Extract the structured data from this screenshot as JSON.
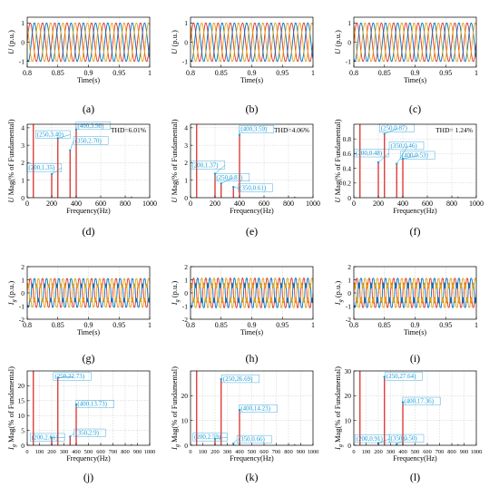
{
  "figure": {
    "colors": {
      "phase": [
        "#d9362b",
        "#0072bd",
        "#e8a317"
      ],
      "harmonic": "#d9302a",
      "annotation": "#1a9cd8",
      "grid": "#c8c8c8"
    }
  },
  "chart_data": [
    {
      "id": "a",
      "label": "(a)",
      "type": "line",
      "kind": "wave",
      "xlabel": "Time(s)",
      "ylabel": "U (p.u.)",
      "xlim": [
        0.8,
        1.0
      ],
      "ylim": [
        -1.3,
        1.3
      ],
      "xticks": [
        "0.8",
        "0.85",
        "0.9",
        "0.95",
        "1"
      ],
      "yticks": [
        "-1",
        "0",
        "1"
      ],
      "series": [
        {
          "values": {
            "amplitude": 1.0,
            "frequency_hz": 50,
            "phase_deg": 0
          }
        },
        {
          "values": {
            "amplitude": 1.0,
            "frequency_hz": 50,
            "phase_deg": -120
          }
        },
        {
          "values": {
            "amplitude": 1.0,
            "frequency_hz": 50,
            "phase_deg": 120
          }
        }
      ],
      "grid": true
    },
    {
      "id": "b",
      "label": "(b)",
      "type": "line",
      "kind": "wave",
      "xlabel": "Time(s)",
      "ylabel": "U (p.u.)",
      "xlim": [
        0.8,
        1.0
      ],
      "ylim": [
        -1.3,
        1.3
      ],
      "xticks": [
        "0.8",
        "0.85",
        "0.9",
        "0.95",
        "1"
      ],
      "yticks": [
        "-1",
        "0",
        "1"
      ],
      "series": [
        {
          "values": {
            "amplitude": 1.0,
            "frequency_hz": 50,
            "phase_deg": 0
          }
        },
        {
          "values": {
            "amplitude": 1.0,
            "frequency_hz": 50,
            "phase_deg": -120
          }
        },
        {
          "values": {
            "amplitude": 1.0,
            "frequency_hz": 50,
            "phase_deg": 120
          }
        }
      ],
      "grid": true
    },
    {
      "id": "c",
      "label": "(c)",
      "type": "line",
      "kind": "wave",
      "xlabel": "Time(s)",
      "ylabel": "U (p.u.)",
      "xlim": [
        0.8,
        1.0
      ],
      "ylim": [
        -1.3,
        1.3
      ],
      "xticks": [
        "0.8",
        "0.85",
        "0.9",
        "0.95",
        "1"
      ],
      "yticks": [
        "-1",
        "0",
        "1"
      ],
      "series": [
        {
          "values": {
            "amplitude": 1.0,
            "frequency_hz": 50,
            "phase_deg": 0
          }
        },
        {
          "values": {
            "amplitude": 1.0,
            "frequency_hz": 50,
            "phase_deg": -120
          }
        },
        {
          "values": {
            "amplitude": 1.0,
            "frequency_hz": 50,
            "phase_deg": 120
          }
        }
      ],
      "grid": true
    },
    {
      "id": "d",
      "label": "(d)",
      "type": "bar",
      "kind": "spectrum",
      "xlabel": "Frequency(Hz)",
      "ylabel": "U Mag(% of Fundamental)",
      "xlim": [
        0,
        1000
      ],
      "ylim": [
        0,
        4.2
      ],
      "xticks": [
        "0",
        "200",
        "400",
        "600",
        "800",
        "1000"
      ],
      "yticks": [
        "0",
        "1",
        "2",
        "3",
        "4"
      ],
      "thd": "THD=6.01%",
      "x": [
        50,
        200,
        250,
        350,
        400
      ],
      "values": [
        4.2,
        1.35,
        3.4,
        2.7,
        3.9
      ],
      "annotations": [
        {
          "text": "(200,1.35)",
          "x": 200,
          "y": 1.35,
          "tx": 10,
          "ty": 1.6
        },
        {
          "text": "(250,3.40)",
          "x": 250,
          "y": 3.4,
          "tx": 80,
          "ty": 3.5
        },
        {
          "text": "(400,3.90)",
          "x": 400,
          "y": 3.9,
          "tx": 410,
          "ty": 4.0
        },
        {
          "text": "(350,2.70)",
          "x": 350,
          "y": 2.7,
          "tx": 390,
          "ty": 3.15
        }
      ],
      "grid": true
    },
    {
      "id": "e",
      "label": "(e)",
      "type": "bar",
      "kind": "spectrum",
      "xlabel": "Frequency(Hz)",
      "ylabel": "U Mag(% of Fundamental)",
      "xlim": [
        0,
        1000
      ],
      "ylim": [
        0,
        4.2
      ],
      "xticks": [
        "0",
        "200",
        "400",
        "600",
        "800",
        "1000"
      ],
      "yticks": [
        "0",
        "1",
        "2",
        "3",
        "4"
      ],
      "thd": "THD=4.06%",
      "x": [
        50,
        200,
        250,
        350,
        400
      ],
      "values": [
        4.2,
        1.37,
        0.81,
        0.61,
        3.59
      ],
      "annotations": [
        {
          "text": "(200,1.37)",
          "x": 200,
          "y": 1.37,
          "tx": 10,
          "ty": 1.75
        },
        {
          "text": "(250,0.81)",
          "x": 250,
          "y": 0.81,
          "tx": 210,
          "ty": 1.05
        },
        {
          "text": "(350,0.61)",
          "x": 350,
          "y": 0.61,
          "tx": 400,
          "ty": 0.45
        },
        {
          "text": "(400,3.59)",
          "x": 400,
          "y": 3.59,
          "tx": 410,
          "ty": 3.8
        }
      ],
      "grid": true
    },
    {
      "id": "f",
      "label": "(f)",
      "type": "bar",
      "kind": "spectrum",
      "xlabel": "Frequency(Hz)",
      "ylabel": "U Mag(% of Fundamental)",
      "xlim": [
        0,
        1000
      ],
      "ylim": [
        0,
        1.0
      ],
      "xticks": [
        "0",
        "200",
        "400",
        "600",
        "800",
        "1000"
      ],
      "yticks": [
        "0",
        "0.2",
        "0.4",
        "0.6",
        "0.8"
      ],
      "thd": "THD= 1.24%",
      "x": [
        50,
        200,
        250,
        350,
        400
      ],
      "values": [
        1.0,
        0.48,
        0.87,
        0.46,
        0.53
      ],
      "annotations": [
        {
          "text": "(200,0.48)",
          "x": 200,
          "y": 0.48,
          "tx": 15,
          "ty": 0.58
        },
        {
          "text": "(250,0.87)",
          "x": 250,
          "y": 0.87,
          "tx": 220,
          "ty": 0.92
        },
        {
          "text": "(350,0.46)",
          "x": 350,
          "y": 0.46,
          "tx": 300,
          "ty": 0.68
        },
        {
          "text": "(400,0.53)",
          "x": 400,
          "y": 0.53,
          "tx": 390,
          "ty": 0.55
        }
      ],
      "grid": true
    },
    {
      "id": "g",
      "label": "(g)",
      "type": "line",
      "kind": "wave",
      "xlabel": "Time(s)",
      "ylabel": "Ig (p.u.)",
      "xlim": [
        0.8,
        1.0
      ],
      "ylim": [
        -2.0,
        2.0
      ],
      "xticks": [
        "0.8",
        "0.85",
        "0.9",
        "0.95",
        "1"
      ],
      "yticks": [
        "-2",
        "-1",
        "0",
        "1",
        "2"
      ],
      "series": [
        {
          "values": {
            "amplitude": 1.0,
            "frequency_hz": 50,
            "phase_deg": 0
          }
        },
        {
          "values": {
            "amplitude": 1.0,
            "frequency_hz": 50,
            "phase_deg": -120
          }
        },
        {
          "values": {
            "amplitude": 1.0,
            "frequency_hz": 50,
            "phase_deg": 120
          }
        }
      ],
      "distortion": {
        "h5": 0.23,
        "h7": 0.14
      },
      "grid": true
    },
    {
      "id": "h",
      "label": "(h)",
      "type": "line",
      "kind": "wave",
      "xlabel": "Time(s)",
      "ylabel": "Ig (p.u.)",
      "xlim": [
        0.8,
        1.0
      ],
      "ylim": [
        -2.0,
        2.0
      ],
      "xticks": [
        "0.8",
        "0.85",
        "0.9",
        "0.95",
        "1"
      ],
      "yticks": [
        "-2",
        "-1",
        "0",
        "1",
        "2"
      ],
      "series": [
        {
          "values": {
            "amplitude": 1.0,
            "frequency_hz": 50,
            "phase_deg": 0
          }
        },
        {
          "values": {
            "amplitude": 1.0,
            "frequency_hz": 50,
            "phase_deg": -120
          }
        },
        {
          "values": {
            "amplitude": 1.0,
            "frequency_hz": 50,
            "phase_deg": 120
          }
        }
      ],
      "distortion": {
        "h5": 0.27,
        "h7": 0.14
      },
      "grid": true
    },
    {
      "id": "i",
      "label": "(i)",
      "type": "line",
      "kind": "wave",
      "xlabel": "Time(s)",
      "ylabel": "Ig (p.u.)",
      "xlim": [
        0.8,
        1.0
      ],
      "ylim": [
        -2.0,
        2.0
      ],
      "xticks": [
        "0.8",
        "0.85",
        "0.9",
        "0.95",
        "1"
      ],
      "yticks": [
        "-2",
        "-1",
        "0",
        "1",
        "2"
      ],
      "series": [
        {
          "values": {
            "amplitude": 1.0,
            "frequency_hz": 50,
            "phase_deg": 0
          }
        },
        {
          "values": {
            "amplitude": 1.0,
            "frequency_hz": 50,
            "phase_deg": -120
          }
        },
        {
          "values": {
            "amplitude": 1.0,
            "frequency_hz": 50,
            "phase_deg": 120
          }
        }
      ],
      "distortion": {
        "h5": 0.28,
        "h7": 0.17
      },
      "grid": true
    },
    {
      "id": "j",
      "label": "(j)",
      "type": "bar",
      "kind": "spectrum",
      "xlabel": "Frequency(Hz)",
      "ylabel": "Ig Mag(% of Fundamental)",
      "xlim": [
        0,
        1000
      ],
      "ylim": [
        0,
        25
      ],
      "xticks": [
        "0",
        "100",
        "200",
        "300",
        "400",
        "500",
        "600",
        "700",
        "800",
        "900",
        "1000"
      ],
      "yticks": [
        "0",
        "5",
        "10",
        "15",
        "20"
      ],
      "x": [
        50,
        200,
        250,
        350,
        400
      ],
      "values": [
        25,
        2.61,
        22.73,
        2.9,
        13.73
      ],
      "annotations": [
        {
          "text": "(250,22.73)",
          "x": 250,
          "y": 22.73,
          "tx": 225,
          "ty": 22.5
        },
        {
          "text": "(400,13.73)",
          "x": 400,
          "y": 13.73,
          "tx": 410,
          "ty": 13.2
        },
        {
          "text": "(200,2.61)",
          "x": 200,
          "y": 2.61,
          "tx": 35,
          "ty": 2.0
        },
        {
          "text": "(350,2.9)",
          "x": 350,
          "y": 2.9,
          "tx": 395,
          "ty": 3.5
        }
      ],
      "grid": true
    },
    {
      "id": "k",
      "label": "(k)",
      "type": "bar",
      "kind": "spectrum",
      "xlabel": "Frequency(Hz)",
      "ylabel": "Ig Mag(% of Fundamental)",
      "xlim": [
        0,
        1000
      ],
      "ylim": [
        0,
        30
      ],
      "xticks": [
        "0",
        "100",
        "200",
        "300",
        "400",
        "500",
        "600",
        "700",
        "800",
        "900",
        "1000"
      ],
      "yticks": [
        "0",
        "10",
        "20"
      ],
      "x": [
        50,
        200,
        250,
        350,
        400
      ],
      "values": [
        30,
        2.59,
        26.69,
        0.66,
        14.23
      ],
      "annotations": [
        {
          "text": "(250,26.69)",
          "x": 250,
          "y": 26.69,
          "tx": 265,
          "ty": 26.0
        },
        {
          "text": "(400,14.23)",
          "x": 400,
          "y": 14.23,
          "tx": 410,
          "ty": 14.0
        },
        {
          "text": "(200,2.59)",
          "x": 200,
          "y": 2.59,
          "tx": 30,
          "ty": 2.5
        },
        {
          "text": "(350,0.66)",
          "x": 350,
          "y": 0.66,
          "tx": 390,
          "ty": 1.6
        }
      ],
      "grid": true
    },
    {
      "id": "l",
      "label": "(l)",
      "type": "bar",
      "kind": "spectrum",
      "xlabel": "Frequency(Hz)",
      "ylabel": "Ig Mag(% of Fundamental)",
      "xlim": [
        0,
        1000
      ],
      "ylim": [
        0,
        30
      ],
      "xticks": [
        "0",
        "100",
        "200",
        "300",
        "400",
        "500",
        "600",
        "700",
        "800",
        "900",
        "1000"
      ],
      "yticks": [
        "0",
        "10",
        "20",
        "30"
      ],
      "x": [
        50,
        200,
        250,
        350,
        400
      ],
      "values": [
        30,
        0.91,
        27.64,
        0.5,
        17.36
      ],
      "annotations": [
        {
          "text": "(250,27.64)",
          "x": 250,
          "y": 27.64,
          "tx": 265,
          "ty": 27.0
        },
        {
          "text": "(400,17.36)",
          "x": 400,
          "y": 17.36,
          "tx": 410,
          "ty": 17.0
        },
        {
          "text": "(200,0.91)",
          "x": 200,
          "y": 0.91,
          "tx": 20,
          "ty": 1.8
        },
        {
          "text": "(350,0.50)",
          "x": 350,
          "y": 0.5,
          "tx": 300,
          "ty": 2.0
        }
      ],
      "grid": true
    }
  ]
}
